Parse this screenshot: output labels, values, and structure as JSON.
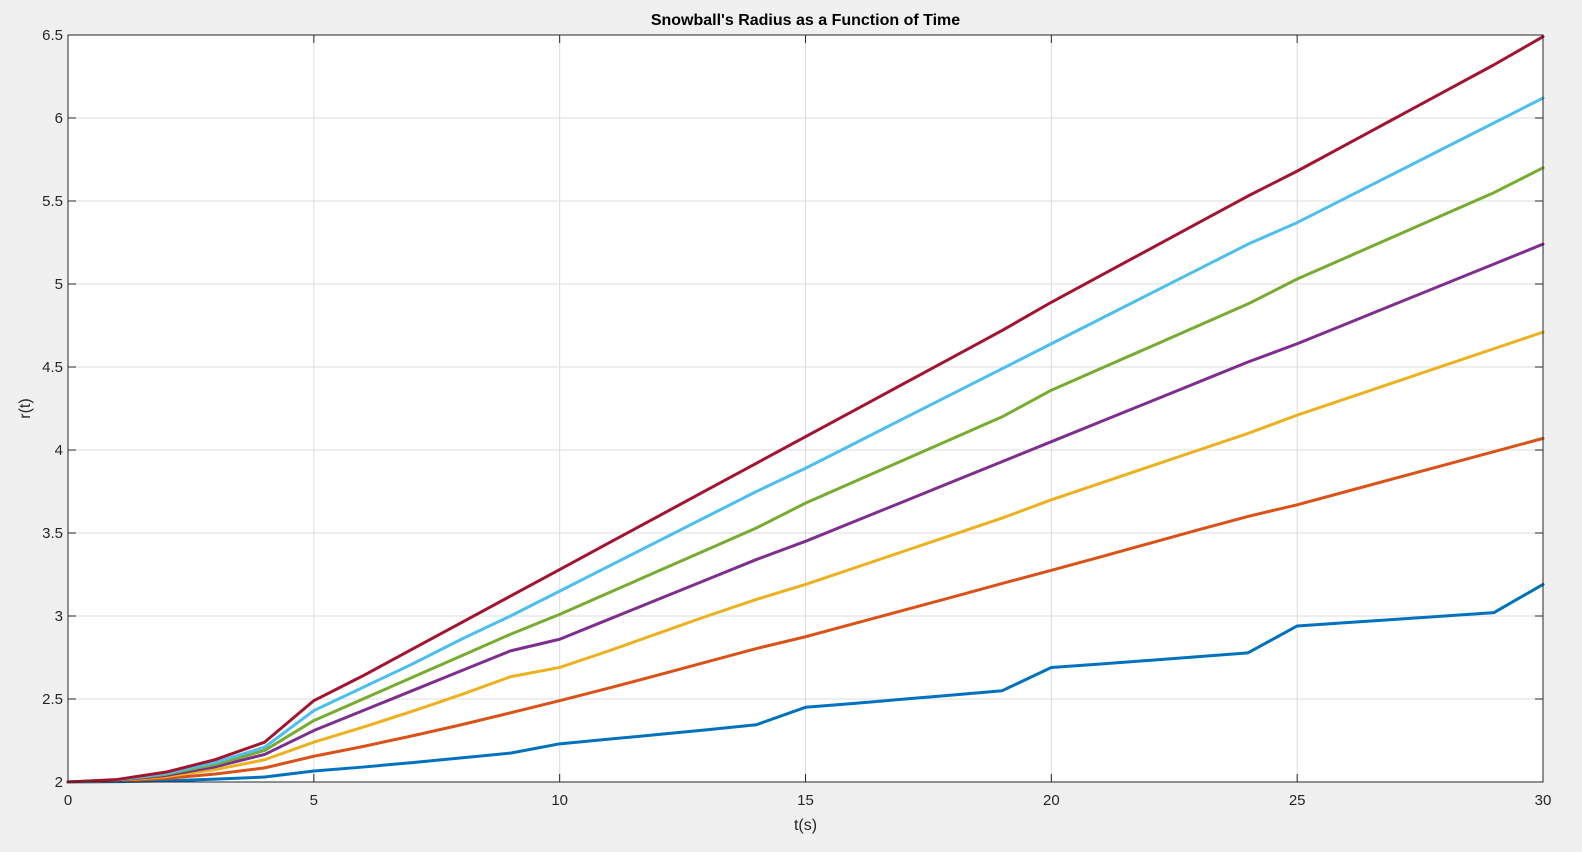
{
  "chart_data": {
    "type": "line",
    "title": "Snowball's Radius as a Function of Time",
    "xlabel": "t(s)",
    "ylabel": "r(t)",
    "xlim": [
      0,
      30
    ],
    "ylim": [
      2,
      6.5
    ],
    "xticks": [
      0,
      5,
      10,
      15,
      20,
      25,
      30
    ],
    "yticks": [
      2,
      2.5,
      3,
      3.5,
      4,
      4.5,
      5,
      5.5,
      6,
      6.5
    ],
    "xtick_labels": [
      "0",
      "5",
      "10",
      "15",
      "20",
      "25",
      "30"
    ],
    "ytick_labels": [
      "2",
      "2.5",
      "3",
      "3.5",
      "4",
      "4.5",
      "5",
      "5.5",
      "6",
      "6.5"
    ],
    "grid": true,
    "background": "#ffffff",
    "figure_background": "#f0f0f0",
    "grid_color": "#dcdcdc",
    "x": [
      0,
      1,
      2,
      3,
      4,
      5,
      6,
      7,
      8,
      9,
      10,
      11,
      12,
      13,
      14,
      15,
      16,
      17,
      18,
      19,
      20,
      21,
      22,
      23,
      24,
      25,
      26,
      27,
      28,
      29,
      30
    ],
    "series": [
      {
        "color": "#0072bd",
        "values": [
          2.0,
          2.002,
          2.007,
          2.017,
          2.03,
          2.066,
          2.09,
          2.117,
          2.145,
          2.174,
          2.23,
          2.258,
          2.286,
          2.315,
          2.345,
          2.45,
          2.474,
          2.499,
          2.524,
          2.55,
          2.69,
          2.711,
          2.733,
          2.755,
          2.778,
          2.94,
          2.96,
          2.98,
          3.0,
          3.02,
          3.19
        ]
      },
      {
        "color": "#d95319",
        "values": [
          2.0,
          2.006,
          2.022,
          2.048,
          2.085,
          2.155,
          2.214,
          2.278,
          2.345,
          2.417,
          2.49,
          2.566,
          2.644,
          2.724,
          2.804,
          2.875,
          2.955,
          3.035,
          3.115,
          3.196,
          3.275,
          3.356,
          3.438,
          3.52,
          3.6,
          3.67,
          3.75,
          3.83,
          3.91,
          3.99,
          4.07
        ]
      },
      {
        "color": "#edb120",
        "values": [
          2.0,
          2.008,
          2.033,
          2.075,
          2.134,
          2.24,
          2.33,
          2.426,
          2.527,
          2.634,
          2.69,
          2.79,
          2.895,
          3.0,
          3.1,
          3.19,
          3.29,
          3.39,
          3.49,
          3.59,
          3.7,
          3.8,
          3.9,
          4.0,
          4.1,
          4.21,
          4.31,
          4.41,
          4.51,
          4.61,
          4.71
        ]
      },
      {
        "color": "#7e2f8e",
        "values": [
          2.0,
          2.01,
          2.04,
          2.092,
          2.166,
          2.31,
          2.43,
          2.55,
          2.67,
          2.79,
          2.86,
          2.98,
          3.1,
          3.22,
          3.34,
          3.45,
          3.57,
          3.69,
          3.81,
          3.93,
          4.05,
          4.17,
          4.29,
          4.41,
          4.53,
          4.64,
          4.76,
          4.88,
          5.0,
          5.12,
          5.24
        ]
      },
      {
        "color": "#77ac30",
        "values": [
          2.0,
          2.012,
          2.047,
          2.106,
          2.19,
          2.37,
          2.5,
          2.63,
          2.76,
          2.89,
          3.01,
          3.14,
          3.27,
          3.4,
          3.53,
          3.68,
          3.81,
          3.94,
          4.07,
          4.2,
          4.36,
          4.49,
          4.62,
          4.75,
          4.88,
          5.03,
          5.16,
          5.29,
          5.42,
          5.55,
          5.7
        ]
      },
      {
        "color": "#4dbeee",
        "values": [
          2.0,
          2.013,
          2.052,
          2.118,
          2.21,
          2.43,
          2.57,
          2.71,
          2.86,
          3.0,
          3.15,
          3.3,
          3.45,
          3.6,
          3.75,
          3.89,
          4.04,
          4.19,
          4.34,
          4.49,
          4.64,
          4.79,
          4.94,
          5.09,
          5.24,
          5.37,
          5.52,
          5.67,
          5.82,
          5.97,
          6.12
        ]
      },
      {
        "color": "#a2142f",
        "values": [
          2.0,
          2.015,
          2.06,
          2.135,
          2.24,
          2.49,
          2.64,
          2.8,
          2.96,
          3.12,
          3.28,
          3.44,
          3.6,
          3.76,
          3.92,
          4.08,
          4.24,
          4.4,
          4.56,
          4.72,
          4.89,
          5.05,
          5.21,
          5.37,
          5.53,
          5.68,
          5.84,
          6.0,
          6.16,
          6.32,
          6.49
        ]
      }
    ]
  }
}
